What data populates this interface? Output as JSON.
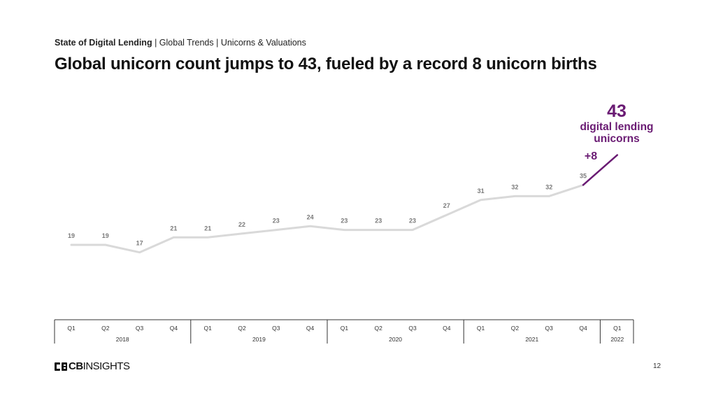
{
  "header": {
    "section": "State of Digital Lending",
    "sep1": " | ",
    "crumb1": "Global Trends",
    "sep2": " | ",
    "crumb2": "Unicorns & Valuations",
    "headline": "Global unicorn count jumps to 43, fueled by a record 8 unicorn births"
  },
  "colors": {
    "line": "#d9d9d9",
    "accent": "#6a1b73",
    "label": "#7a7a7a",
    "axis": "#333333"
  },
  "callout": {
    "big_number": "43",
    "caption_line1": "digital lending",
    "caption_line2": "unicorns",
    "delta": "+8"
  },
  "chart_data": {
    "type": "line",
    "categories": [
      "Q1",
      "Q2",
      "Q3",
      "Q4",
      "Q1",
      "Q2",
      "Q3",
      "Q4",
      "Q1",
      "Q2",
      "Q3",
      "Q4",
      "Q1",
      "Q2",
      "Q3",
      "Q4",
      "Q1"
    ],
    "years": [
      {
        "label": "2018",
        "quarters": 4
      },
      {
        "label": "2019",
        "quarters": 4
      },
      {
        "label": "2020",
        "quarters": 4
      },
      {
        "label": "2021",
        "quarters": 4
      },
      {
        "label": "2022",
        "quarters": 1
      }
    ],
    "series": [
      {
        "values": [
          19,
          19,
          17,
          21,
          21,
          22,
          23,
          24,
          23,
          23,
          23,
          27,
          31,
          32,
          32,
          35,
          43
        ]
      }
    ],
    "highlight_last_segment": true
  },
  "footer": {
    "logo_icon": "cb-logo-icon",
    "logo_bold": "CB",
    "logo_rest": "INSIGHTS",
    "page_number": "12"
  }
}
